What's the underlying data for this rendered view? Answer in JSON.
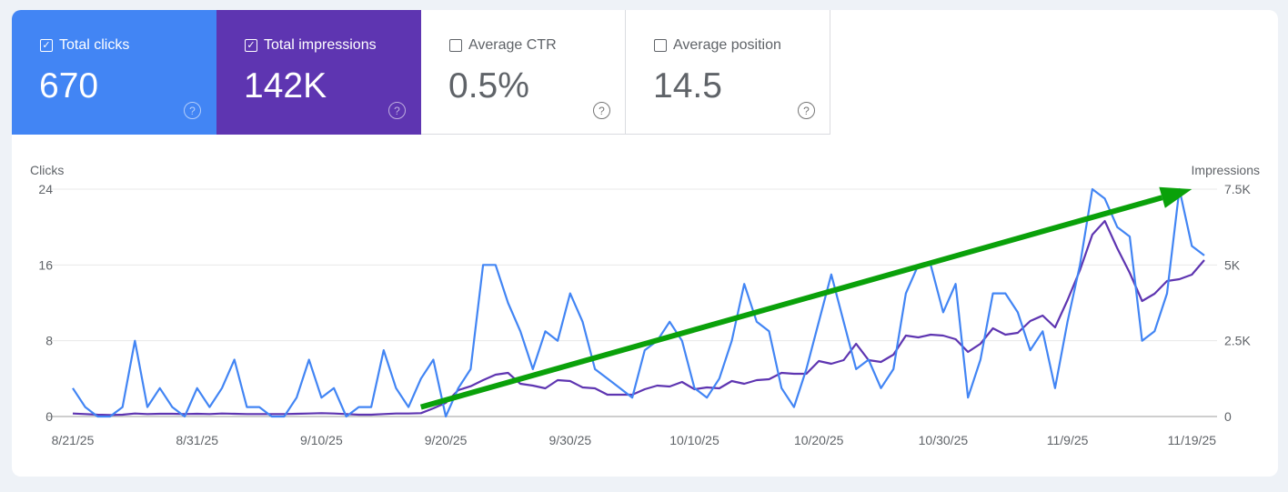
{
  "metrics": [
    {
      "label": "Total clicks",
      "value": "670",
      "checked": true,
      "color": "#4285f4"
    },
    {
      "label": "Total impressions",
      "value": "142K",
      "checked": true,
      "color": "#5e35b1"
    },
    {
      "label": "Average CTR",
      "value": "0.5%",
      "checked": false
    },
    {
      "label": "Average position",
      "value": "14.5",
      "checked": false
    }
  ],
  "icons": {
    "checkbox": "checkbox-icon",
    "help": "help-circle-icon"
  },
  "chart_data": {
    "type": "line",
    "left_axis_label": "Clicks",
    "right_axis_label": "Impressions",
    "left_ticks": [
      "0",
      "8",
      "16",
      "24"
    ],
    "right_ticks": [
      "0",
      "2.5K",
      "5K",
      "7.5K"
    ],
    "left_ylim": [
      0,
      24
    ],
    "right_ylim": [
      0,
      7500
    ],
    "x_tick_labels": [
      "8/21/25",
      "8/31/25",
      "9/10/25",
      "9/20/25",
      "9/30/25",
      "10/10/25",
      "10/20/25",
      "10/30/25",
      "11/9/25",
      "11/19/25"
    ],
    "x_start": "2025-08-21",
    "x_end": "2025-11-20",
    "grid": true,
    "series": [
      {
        "name": "Clicks",
        "axis": "left",
        "color": "#4285f4",
        "values": [
          3,
          1,
          0,
          0,
          1,
          8,
          1,
          3,
          1,
          0,
          3,
          1,
          3,
          6,
          1,
          1,
          0,
          0,
          2,
          6,
          2,
          3,
          0,
          1,
          1,
          7,
          3,
          1,
          4,
          6,
          0,
          3,
          5,
          16,
          16,
          12,
          9,
          5,
          9,
          8,
          13,
          10,
          5,
          4,
          3,
          2,
          7,
          8,
          10,
          8,
          3,
          2,
          4,
          8,
          14,
          10,
          9,
          3,
          1,
          5,
          10,
          15,
          10,
          5,
          6,
          3,
          5,
          13,
          16,
          16,
          11,
          14,
          2,
          6,
          13,
          13,
          11,
          7,
          9,
          3,
          10,
          16,
          24,
          23,
          20,
          19,
          8,
          9,
          13,
          24,
          18,
          17
        ]
      },
      {
        "name": "Impressions",
        "axis": "right",
        "color": "#5e35b1",
        "values": [
          100,
          80,
          60,
          50,
          60,
          100,
          80,
          90,
          90,
          80,
          90,
          80,
          100,
          90,
          80,
          80,
          80,
          80,
          90,
          100,
          110,
          100,
          80,
          60,
          60,
          80,
          100,
          100,
          110,
          270,
          450,
          870,
          1000,
          1200,
          1380,
          1440,
          1080,
          1020,
          930,
          1200,
          1170,
          960,
          930,
          720,
          720,
          720,
          900,
          1020,
          990,
          1140,
          900,
          960,
          930,
          1170,
          1080,
          1200,
          1230,
          1440,
          1410,
          1410,
          1830,
          1740,
          1860,
          2400,
          1860,
          1800,
          2040,
          2670,
          2610,
          2700,
          2670,
          2550,
          2130,
          2400,
          2910,
          2700,
          2760,
          3150,
          3330,
          2940,
          3840,
          4830,
          6000,
          6450,
          5550,
          4740,
          3810,
          4050,
          4470,
          4530,
          4680,
          5160
        ]
      }
    ],
    "annotations": [
      {
        "type": "arrow",
        "color": "#0aa10a",
        "from": [
          "2025-09-18",
          1
        ],
        "to": [
          "2025-11-19",
          24
        ]
      }
    ]
  }
}
